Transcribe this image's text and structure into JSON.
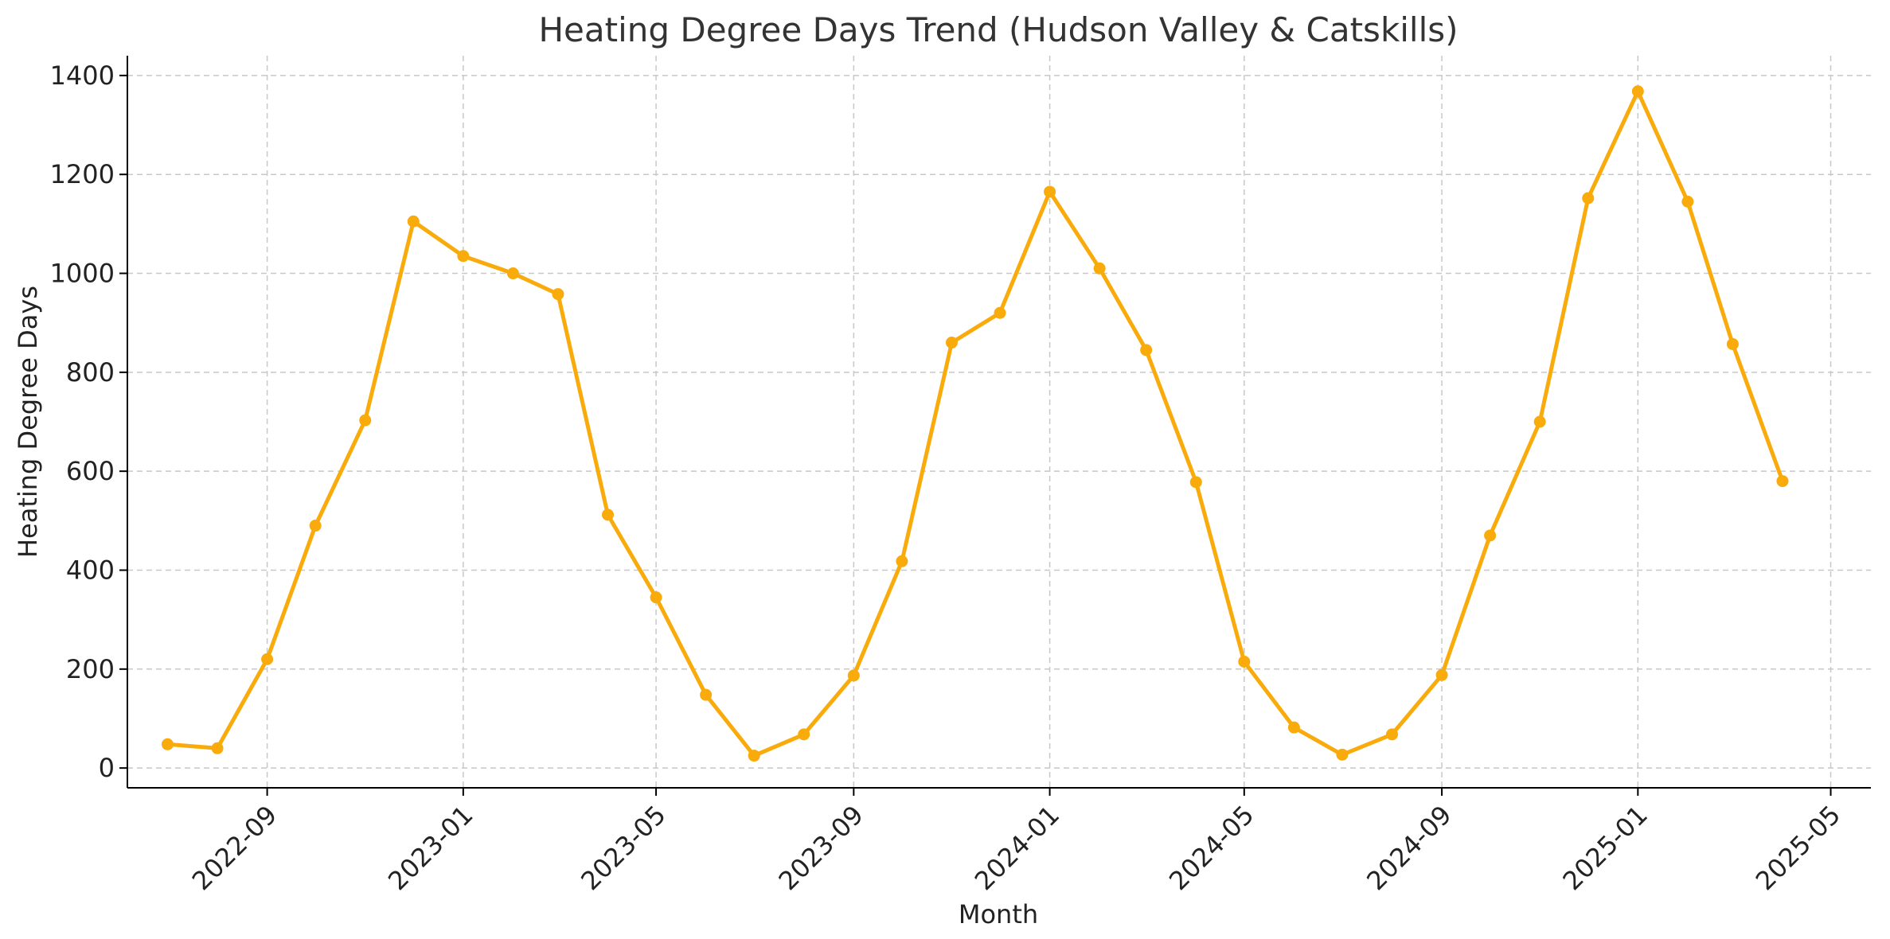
{
  "chart_data": {
    "type": "line",
    "title": "Heating Degree Days Trend (Hudson Valley & Catskills)",
    "xlabel": "Month",
    "ylabel": "Heating Degree Days",
    "x_ticks": [
      "2022-09",
      "2023-01",
      "2023-05",
      "2023-09",
      "2024-01",
      "2024-05",
      "2024-09",
      "2025-01",
      "2025-05"
    ],
    "y_ticks": [
      0,
      200,
      400,
      600,
      800,
      1000,
      1200,
      1400
    ],
    "xlim": [
      "2022-06-06",
      "2025-05-26"
    ],
    "ylim": [
      -40,
      1440
    ],
    "grid": true,
    "color": "#F9AB0B",
    "x": [
      "2022-07-01",
      "2022-08-01",
      "2022-09-01",
      "2022-10-01",
      "2022-11-01",
      "2022-12-01",
      "2023-01-01",
      "2023-02-01",
      "2023-03-01",
      "2023-04-01",
      "2023-05-01",
      "2023-06-01",
      "2023-07-01",
      "2023-08-01",
      "2023-09-01",
      "2023-10-01",
      "2023-11-01",
      "2023-12-01",
      "2024-01-01",
      "2024-02-01",
      "2024-03-01",
      "2024-04-01",
      "2024-05-01",
      "2024-06-01",
      "2024-07-01",
      "2024-08-01",
      "2024-09-01",
      "2024-10-01",
      "2024-11-01",
      "2024-12-01",
      "2025-01-01",
      "2025-02-01",
      "2025-03-01",
      "2025-04-01"
    ],
    "values": [
      48,
      40,
      220,
      490,
      703,
      1105,
      1035,
      1000,
      958,
      512,
      345,
      148,
      25,
      68,
      187,
      418,
      860,
      920,
      1165,
      1010,
      845,
      578,
      215,
      82,
      27,
      68,
      188,
      470,
      700,
      1152,
      1368,
      1145,
      857,
      580
    ]
  }
}
